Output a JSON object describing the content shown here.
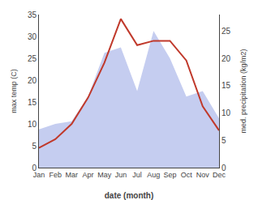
{
  "chart_data": {
    "type": "line",
    "categories": [
      "Jan",
      "Feb",
      "Mar",
      "Apr",
      "May",
      "Jun",
      "Jul",
      "Aug",
      "Sep",
      "Oct",
      "Nov",
      "Dec"
    ],
    "series": [
      {
        "type": "area",
        "axis": "y2",
        "color": "#c5cdf0",
        "values": [
          7.0,
          8.0,
          8.5,
          13.0,
          21.0,
          22.0,
          14.0,
          25.0,
          20.0,
          13.0,
          14.0,
          9.0
        ]
      },
      {
        "type": "line",
        "color": "#c0392b",
        "values": [
          4.5,
          6.5,
          10.0,
          16.0,
          24.0,
          34.0,
          28.0,
          29.0,
          29.0,
          24.5,
          14.0,
          8.5
        ]
      }
    ],
    "xlabel": "date (month)",
    "ylabel": "max temp (C)",
    "y2label": "med. precipitation (kg/m2)",
    "ylim": [
      0,
      35
    ],
    "yticks": [
      0,
      5,
      10,
      15,
      20,
      25,
      30,
      35
    ],
    "y2lim": [
      0,
      28
    ],
    "y2ticks": [
      0,
      5,
      10,
      15,
      20,
      25
    ],
    "grid": false
  }
}
